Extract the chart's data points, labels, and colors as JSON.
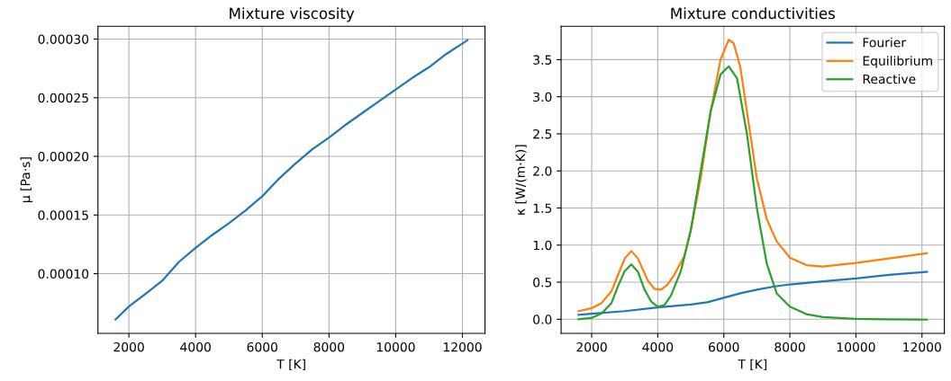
{
  "chart_data": [
    {
      "type": "line",
      "title": "Mixture viscosity",
      "xlabel": "T [K]",
      "ylabel": "μ [Pa·s]",
      "x": [
        1600,
        2000,
        2600,
        3000,
        3500,
        4000,
        4500,
        5000,
        5500,
        6000,
        6500,
        7000,
        7500,
        8000,
        8500,
        9000,
        9500,
        10000,
        10500,
        11000,
        11500,
        12150
      ],
      "series": [
        {
          "color": "#1f77b4",
          "values": [
            6.1e-05,
            7.2e-05,
            8.5e-05,
            9.4e-05,
            0.00011,
            0.000122,
            0.000133,
            0.000143,
            0.000154,
            0.000166,
            0.000181,
            0.000194,
            0.000206,
            0.000216,
            0.000227,
            0.000237,
            0.000247,
            0.000257,
            0.000267,
            0.000276,
            0.000287,
            0.000299
          ]
        }
      ],
      "xlim": [
        1073,
        12677
      ],
      "xticks": [
        2000,
        4000,
        6000,
        8000,
        10000,
        12000
      ],
      "ylim": [
        4.91e-05,
        0.0003109
      ],
      "yticks": [
        {
          "value": 0.0001,
          "label": "0.00010"
        },
        {
          "value": 0.00015,
          "label": "0.00015"
        },
        {
          "value": 0.0002,
          "label": "0.00020"
        },
        {
          "value": 0.00025,
          "label": "0.00025"
        },
        {
          "value": 0.0003,
          "label": "0.00030"
        }
      ],
      "grid": true,
      "legend": false,
      "marker": "none",
      "line_style": "solid"
    },
    {
      "type": "line",
      "title": "Mixture conductivities",
      "xlabel": "T [K]",
      "ylabel": "κ [W/(m·K)]",
      "series": [
        {
          "name": "Fourier",
          "color": "#1f77b4",
          "x": [
            1600,
            2000,
            3000,
            4000,
            5000,
            5500,
            6000,
            6500,
            7000,
            7500,
            8000,
            9000,
            10000,
            11000,
            12150
          ],
          "values": [
            0.06,
            0.075,
            0.11,
            0.16,
            0.2,
            0.23,
            0.29,
            0.35,
            0.4,
            0.44,
            0.47,
            0.51,
            0.55,
            0.6,
            0.64
          ]
        },
        {
          "name": "Equilibrium",
          "color": "#ff7f0e",
          "x": [
            1600,
            2000,
            2300,
            2600,
            2800,
            3000,
            3200,
            3400,
            3700,
            3900,
            4100,
            4300,
            4500,
            4800,
            5000,
            5300,
            5600,
            5900,
            6150,
            6300,
            6500,
            6800,
            7000,
            7300,
            7600,
            8000,
            8500,
            9000,
            10000,
            11000,
            12150
          ],
          "values": [
            0.11,
            0.15,
            0.22,
            0.38,
            0.6,
            0.82,
            0.92,
            0.82,
            0.52,
            0.41,
            0.4,
            0.47,
            0.6,
            0.85,
            1.2,
            1.9,
            2.8,
            3.5,
            3.77,
            3.72,
            3.4,
            2.5,
            1.9,
            1.35,
            1.05,
            0.83,
            0.73,
            0.71,
            0.76,
            0.82,
            0.89
          ]
        },
        {
          "name": "Reactive",
          "color": "#2ca02c",
          "x": [
            1600,
            2000,
            2300,
            2600,
            2800,
            3000,
            3200,
            3400,
            3600,
            3800,
            4000,
            4200,
            4400,
            4700,
            5000,
            5300,
            5600,
            5900,
            6150,
            6400,
            6700,
            7000,
            7300,
            7600,
            8000,
            8500,
            9000,
            10000,
            11000,
            12150
          ],
          "values": [
            0.0,
            0.02,
            0.08,
            0.22,
            0.45,
            0.65,
            0.74,
            0.64,
            0.4,
            0.24,
            0.17,
            0.19,
            0.32,
            0.65,
            1.2,
            2.0,
            2.8,
            3.3,
            3.41,
            3.25,
            2.5,
            1.5,
            0.75,
            0.35,
            0.17,
            0.07,
            0.03,
            0.005,
            0.0,
            -0.005
          ]
        }
      ],
      "xlim": [
        1073,
        12677
      ],
      "xticks": [
        2000,
        4000,
        6000,
        8000,
        10000,
        12000
      ],
      "ylim": [
        -0.19,
        3.95
      ],
      "yticks": [
        {
          "value": 0,
          "label": "0.0"
        },
        {
          "value": 0.5,
          "label": "0.5"
        },
        {
          "value": 1,
          "label": "1.0"
        },
        {
          "value": 1.5,
          "label": "1.5"
        },
        {
          "value": 2,
          "label": "2.0"
        },
        {
          "value": 2.5,
          "label": "2.5"
        },
        {
          "value": 3,
          "label": "3.0"
        },
        {
          "value": 3.5,
          "label": "3.5"
        }
      ],
      "grid": true,
      "legend": "top right",
      "marker": "none",
      "line_style": "solid"
    }
  ]
}
